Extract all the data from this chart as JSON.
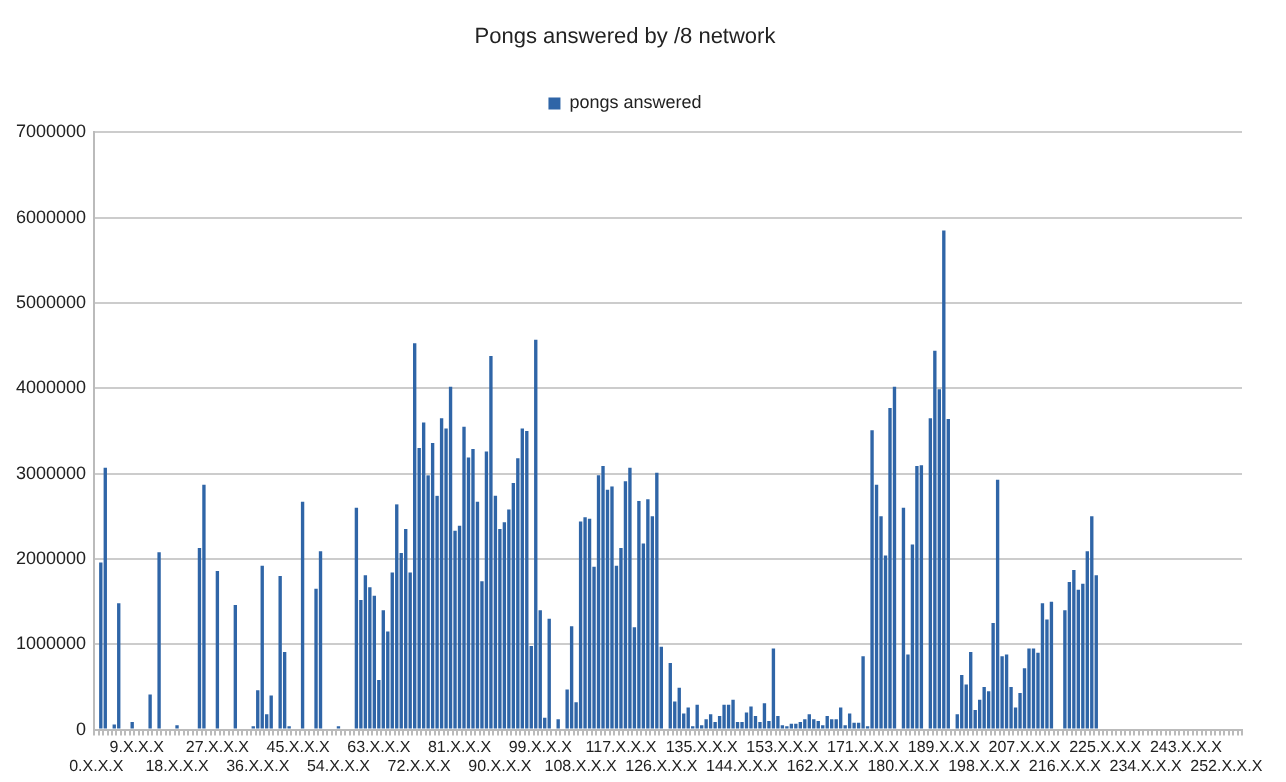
{
  "chart_data": {
    "type": "bar",
    "title": "Pongs answered by /8 network",
    "categories": [
      "0.X.X.X",
      null,
      null,
      null,
      null,
      null,
      null,
      null,
      null,
      "9.X.X.X",
      null,
      null,
      null,
      null,
      null,
      null,
      null,
      null,
      "18.X.X.X",
      null,
      null,
      null,
      null,
      null,
      null,
      null,
      null,
      "27.X.X.X",
      null,
      null,
      null,
      null,
      null,
      null,
      null,
      null,
      "36.X.X.X",
      null,
      null,
      null,
      null,
      null,
      null,
      null,
      null,
      "45.X.X.X",
      null,
      null,
      null,
      null,
      null,
      null,
      null,
      null,
      "54.X.X.X",
      null,
      null,
      null,
      null,
      null,
      null,
      null,
      null,
      "63.X.X.X",
      null,
      null,
      null,
      null,
      null,
      null,
      null,
      null,
      "72.X.X.X",
      null,
      null,
      null,
      null,
      null,
      null,
      null,
      null,
      "81.X.X.X",
      null,
      null,
      null,
      null,
      null,
      null,
      null,
      null,
      "90.X.X.X",
      null,
      null,
      null,
      null,
      null,
      null,
      null,
      null,
      "99.X.X.X",
      null,
      null,
      null,
      null,
      null,
      null,
      null,
      null,
      "108.X.X.X",
      null,
      null,
      null,
      null,
      null,
      null,
      null,
      null,
      "117.X.X.X",
      null,
      null,
      null,
      null,
      null,
      null,
      null,
      null,
      "126.X.X.X",
      null,
      null,
      null,
      null,
      null,
      null,
      null,
      null,
      "135.X.X.X",
      null,
      null,
      null,
      null,
      null,
      null,
      null,
      null,
      "144.X.X.X",
      null,
      null,
      null,
      null,
      null,
      null,
      null,
      null,
      "153.X.X.X",
      null,
      null,
      null,
      null,
      null,
      null,
      null,
      null,
      "162.X.X.X",
      null,
      null,
      null,
      null,
      null,
      null,
      null,
      null,
      "171.X.X.X",
      null,
      null,
      null,
      null,
      null,
      null,
      null,
      null,
      "180.X.X.X",
      null,
      null,
      null,
      null,
      null,
      null,
      null,
      null,
      "189.X.X.X",
      null,
      null,
      null,
      null,
      null,
      null,
      null,
      null,
      "198.X.X.X",
      null,
      null,
      null,
      null,
      null,
      null,
      null,
      null,
      "207.X.X.X",
      null,
      null,
      null,
      null,
      null,
      null,
      null,
      null,
      "216.X.X.X",
      null,
      null,
      null,
      null,
      null,
      null,
      null,
      null,
      "225.X.X.X",
      null,
      null,
      null,
      null,
      null,
      null,
      null,
      null,
      "234.X.X.X",
      null,
      null,
      null,
      null,
      null,
      null,
      null,
      null,
      "243.X.X.X",
      null,
      null,
      null,
      null,
      null,
      null,
      null,
      null,
      "252.X.X.X",
      null,
      null,
      null
    ],
    "series": [
      {
        "name": "pongs answered",
        "color": "#2f65a7",
        "values": [
          0,
          1960000,
          3070000,
          0,
          60000,
          1480000,
          0,
          0,
          90000,
          0,
          0,
          0,
          410000,
          0,
          2080000,
          0,
          0,
          0,
          50000,
          0,
          0,
          0,
          0,
          2130000,
          2870000,
          0,
          0,
          1860000,
          0,
          0,
          0,
          1460000,
          0,
          0,
          0,
          40000,
          460000,
          1920000,
          180000,
          400000,
          0,
          1800000,
          910000,
          40000,
          0,
          0,
          2670000,
          0,
          0,
          1650000,
          2090000,
          0,
          0,
          0,
          40000,
          0,
          0,
          0,
          2600000,
          1520000,
          1810000,
          1670000,
          1570000,
          580000,
          1400000,
          1150000,
          1840000,
          2640000,
          2070000,
          2350000,
          1840000,
          4530000,
          3300000,
          3600000,
          2980000,
          3360000,
          2740000,
          3650000,
          3530000,
          4020000,
          2330000,
          2390000,
          3550000,
          3190000,
          3290000,
          2670000,
          1740000,
          3260000,
          4380000,
          2740000,
          2350000,
          2430000,
          2580000,
          2890000,
          3180000,
          3530000,
          3500000,
          980000,
          4570000,
          1400000,
          140000,
          1300000,
          0,
          120000,
          0,
          470000,
          1210000,
          320000,
          2440000,
          2490000,
          2470000,
          1910000,
          2980000,
          3090000,
          2810000,
          2850000,
          1920000,
          2130000,
          2910000,
          3070000,
          1200000,
          2680000,
          2180000,
          2700000,
          2500000,
          3010000,
          970000,
          0,
          780000,
          330000,
          490000,
          190000,
          260000,
          40000,
          290000,
          50000,
          120000,
          180000,
          90000,
          160000,
          290000,
          290000,
          350000,
          90000,
          90000,
          200000,
          270000,
          160000,
          90000,
          310000,
          100000,
          950000,
          160000,
          50000,
          40000,
          70000,
          70000,
          90000,
          120000,
          180000,
          120000,
          100000,
          50000,
          160000,
          120000,
          120000,
          260000,
          50000,
          190000,
          80000,
          80000,
          860000,
          40000,
          3510000,
          2870000,
          2500000,
          2040000,
          3770000,
          4020000,
          0,
          2600000,
          880000,
          2170000,
          3090000,
          3100000,
          0,
          3650000,
          4440000,
          3990000,
          5850000,
          3640000,
          0,
          180000,
          640000,
          530000,
          910000,
          230000,
          350000,
          500000,
          450000,
          1250000,
          2930000,
          860000,
          880000,
          500000,
          260000,
          430000,
          720000,
          950000,
          950000,
          900000,
          1480000,
          1290000,
          1500000,
          0,
          0,
          1400000,
          1730000,
          1870000,
          1640000,
          1710000,
          2090000,
          2500000,
          1810000,
          0,
          0,
          0,
          0,
          0,
          0,
          0,
          0,
          0,
          0,
          0,
          0,
          0,
          0,
          0,
          0,
          0,
          0,
          0,
          0,
          0,
          0,
          0,
          0,
          0,
          0,
          0,
          0,
          0,
          0,
          0,
          0
        ]
      }
    ],
    "ylim": [
      0,
      7000000
    ],
    "yticks": [
      0,
      1000000,
      2000000,
      3000000,
      4000000,
      5000000,
      6000000,
      7000000
    ],
    "grid": "y",
    "legend": "top"
  }
}
